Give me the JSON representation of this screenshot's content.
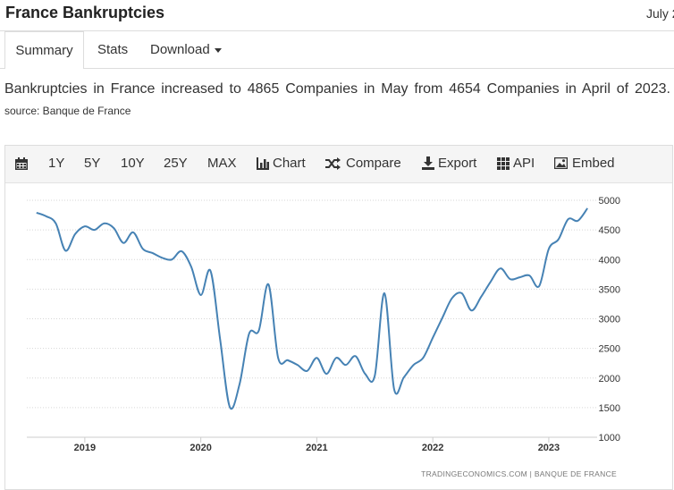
{
  "header": {
    "title": "France Bankruptcies",
    "date": "July 2"
  },
  "tabs": [
    "Summary",
    "Stats",
    "Download"
  ],
  "summary": {
    "text": "Bankruptcies in France increased to 4865 Companies in May from 4654 Companies in April of 2023.",
    "source": "source: Banque de France"
  },
  "toolbar": [
    "1Y",
    "5Y",
    "10Y",
    "25Y",
    "MAX",
    "Chart",
    "Compare",
    "Export",
    "API",
    "Embed"
  ],
  "chart_data": {
    "type": "line",
    "credit": "TRADINGECONOMICS.COM | BANQUE DE FRANCE",
    "x": [
      "2018-08",
      "2018-09",
      "2018-10",
      "2018-11",
      "2018-12",
      "2019-01",
      "2019-02",
      "2019-03",
      "2019-04",
      "2019-05",
      "2019-06",
      "2019-07",
      "2019-08",
      "2019-09",
      "2019-10",
      "2019-11",
      "2019-12",
      "2020-01",
      "2020-02",
      "2020-03",
      "2020-04",
      "2020-05",
      "2020-06",
      "2020-07",
      "2020-08",
      "2020-09",
      "2020-10",
      "2020-11",
      "2020-12",
      "2021-01",
      "2021-02",
      "2021-03",
      "2021-04",
      "2021-05",
      "2021-06",
      "2021-07",
      "2021-08",
      "2021-09",
      "2021-10",
      "2021-11",
      "2021-12",
      "2022-01",
      "2022-02",
      "2022-03",
      "2022-04",
      "2022-05",
      "2022-06",
      "2022-07",
      "2022-08",
      "2022-09",
      "2022-10",
      "2022-11",
      "2022-12",
      "2023-01",
      "2023-02",
      "2023-03",
      "2023-04",
      "2023-05"
    ],
    "series": [
      {
        "name": "Bankruptcies",
        "color": "#4682b4",
        "values": [
          4790,
          4730,
          4610,
          4150,
          4430,
          4560,
          4500,
          4610,
          4530,
          4280,
          4460,
          4180,
          4110,
          4030,
          4000,
          4140,
          3880,
          3400,
          3810,
          2650,
          1510,
          1890,
          2750,
          2800,
          3580,
          2340,
          2300,
          2220,
          2120,
          2340,
          2070,
          2340,
          2220,
          2370,
          2070,
          2040,
          3430,
          1810,
          2010,
          2220,
          2340,
          2680,
          3020,
          3350,
          3430,
          3140,
          3370,
          3630,
          3850,
          3670,
          3700,
          3730,
          3550,
          4180,
          4340,
          4680,
          4654,
          4865
        ]
      }
    ],
    "xlim": [
      "2018-07",
      "2023-06"
    ],
    "xticks": [
      {
        "value": "2019-01",
        "label": "2019"
      },
      {
        "value": "2020-01",
        "label": "2020"
      },
      {
        "value": "2021-01",
        "label": "2021"
      },
      {
        "value": "2022-01",
        "label": "2022"
      },
      {
        "value": "2023-01",
        "label": "2023"
      }
    ],
    "ylim": [
      1000,
      5000
    ],
    "yticks": [
      1000,
      1500,
      2000,
      2500,
      3000,
      3500,
      4000,
      4500,
      5000
    ],
    "grid": true
  }
}
